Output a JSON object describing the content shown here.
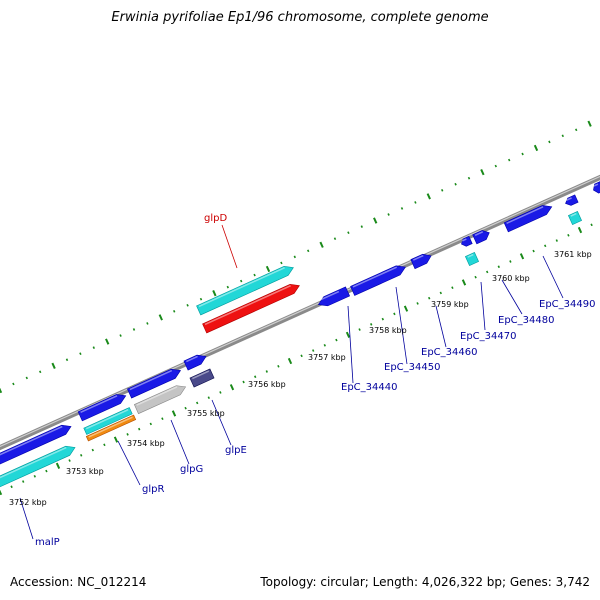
{
  "title": "Erwinia pyrifoliae Ep1/96 chromosome, complete genome",
  "footer": {
    "accession": "Accession: NC_012214",
    "summary": "Topology: circular; Length: 4,026,322 bp; Genes: 3,742"
  },
  "colors": {
    "backbone": "#8a8a8a",
    "tick": "#1a8a1a",
    "gene_blue": "#1a1ae6",
    "gene_cyan": "#22d7d7",
    "gene_red": "#ee1111",
    "gene_orange": "#f08a10",
    "gene_gray": "#c4c4c4",
    "gene_navy": "#4a4a8a",
    "label_blue": "#00009c",
    "label_red": "#cc0000"
  },
  "scale_labels": [
    "3752 kbp",
    "3753 kbp",
    "3754 kbp",
    "3755 kbp",
    "3756 kbp",
    "3757 kbp",
    "3758 kbp",
    "3759 kbp",
    "3760 kbp",
    "3761 kbp"
  ],
  "gene_labels": [
    {
      "text": "glpD",
      "color": "red"
    },
    {
      "text": "malP",
      "color": "blue"
    },
    {
      "text": "glpR",
      "color": "blue"
    },
    {
      "text": "glpG",
      "color": "blue"
    },
    {
      "text": "glpE",
      "color": "blue"
    },
    {
      "text": "EpC_34440",
      "color": "blue"
    },
    {
      "text": "EpC_34450",
      "color": "blue"
    },
    {
      "text": "EpC_34460",
      "color": "blue"
    },
    {
      "text": "EpC_34470",
      "color": "blue"
    },
    {
      "text": "EpC_34480",
      "color": "blue"
    },
    {
      "text": "EpC_34490",
      "color": "blue"
    }
  ]
}
